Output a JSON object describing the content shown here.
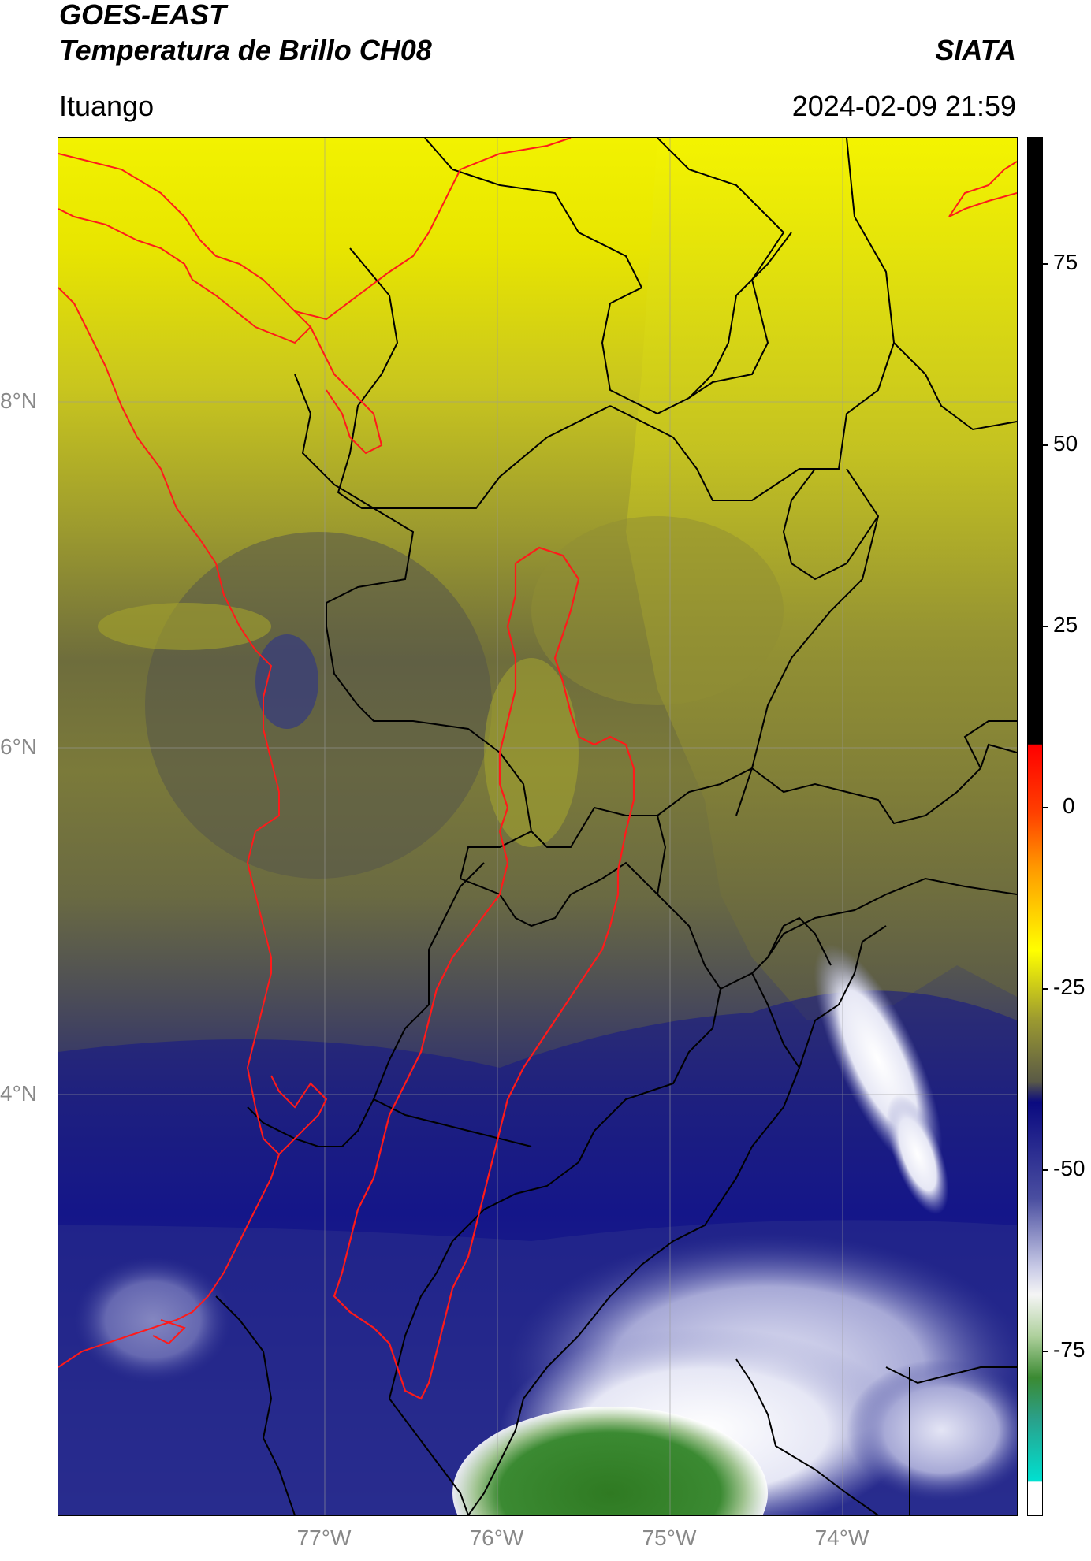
{
  "header": {
    "title": "GOES-EAST",
    "subtitle": "Temperatura de Brillo CH08",
    "brand": "SIATA",
    "region": "Ituango",
    "timestamp": "2024-02-09 21:59"
  },
  "map": {
    "lat_labels": [
      "8°N",
      "6°N",
      "4°N"
    ],
    "lon_labels": [
      "77°W",
      "76°W",
      "75°W",
      "74°W"
    ],
    "colors": {
      "yellow": "#f2f200",
      "olive": "#9e9c2e",
      "dark_olive": "#5c5c3e",
      "dark_blue": "#10107e",
      "mid_blue": "#3b3f95",
      "light_lavender": "#c5c7e6",
      "green": "#3b7d2a",
      "border_black": "#000000",
      "border_red": "#ff1a1a"
    }
  },
  "colorbar": {
    "ticks": [
      "75",
      "50",
      "25",
      "0",
      "-25",
      "-50",
      "-75"
    ]
  }
}
